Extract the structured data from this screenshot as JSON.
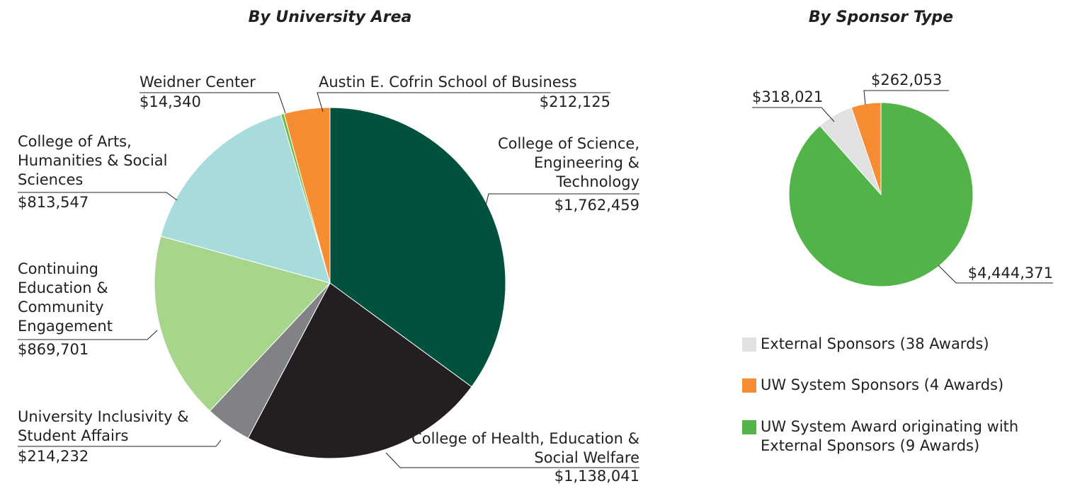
{
  "chart_data": [
    {
      "type": "pie",
      "title": "By University Area",
      "categories": [
        "College of Science, Engineering & Technology",
        "College of Health, Education & Social Welfare",
        "University Inclusivity & Student Affairs",
        "Continuing Education & Community Engagement",
        "College of Arts, Humanities & Social Sciences",
        "Weidner Center",
        "Austin E. Cofrin School of Business"
      ],
      "values": [
        1762459,
        1138041,
        214232,
        869701,
        813547,
        14340,
        212125
      ],
      "value_labels": [
        "$1,762,459",
        "$1,138,041",
        "$214,232",
        "$869,701",
        "$813,547",
        "$14,340",
        "$212,125"
      ],
      "colors": [
        "#00523f",
        "#231f20",
        "#808285",
        "#a8d58c",
        "#a8dcdc",
        "#6cbd45",
        "#f68d33"
      ]
    },
    {
      "type": "pie",
      "title": "By Sponsor Type",
      "categories": [
        "External Sponsors (38 Awards)",
        "UW System Sponsors (4 Awards)",
        "UW System Award originating with External Sponsors (9 Awards)"
      ],
      "values": [
        318021,
        262053,
        4444371
      ],
      "value_labels": [
        "$318,021",
        "$262,053",
        "$4,444,371"
      ],
      "colors": [
        "#e1e1e1",
        "#f68d33",
        "#52b348"
      ],
      "legend": true
    }
  ]
}
